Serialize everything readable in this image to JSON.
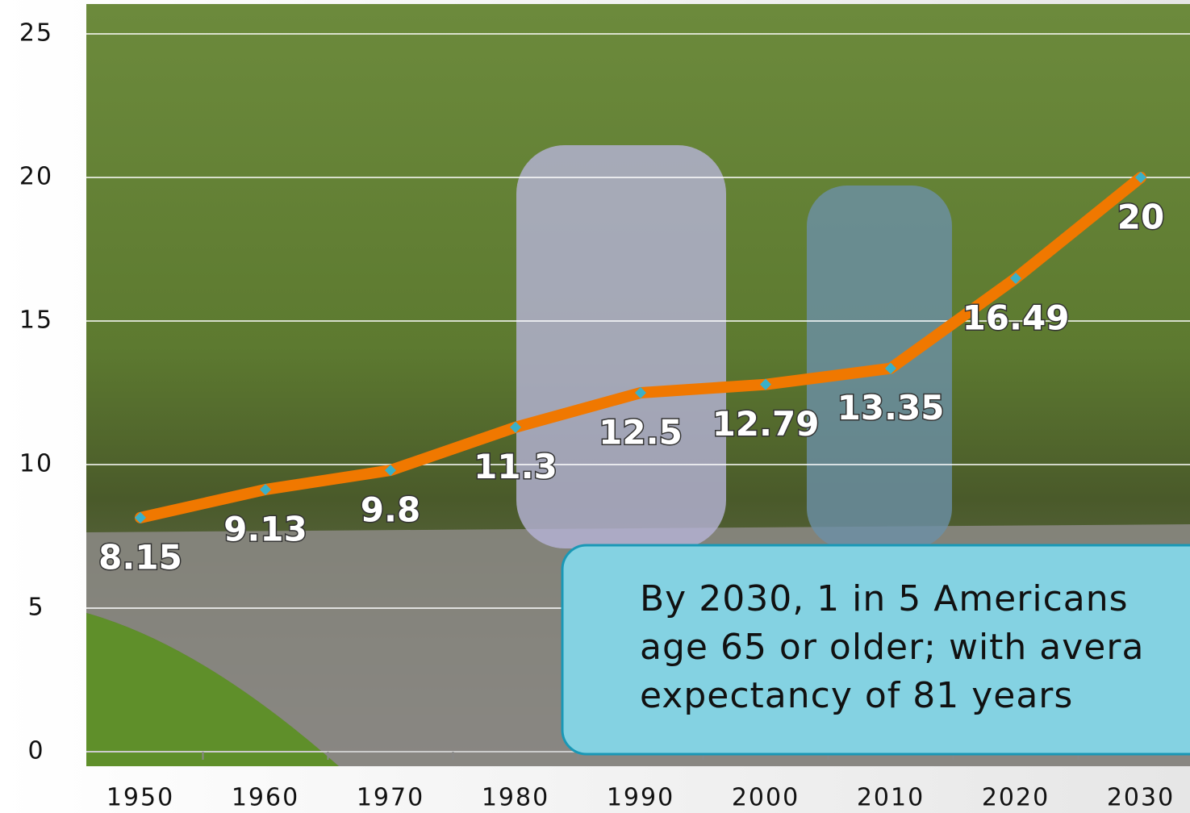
{
  "chart_data": {
    "type": "line",
    "categories": [
      "1950",
      "1960",
      "1970",
      "1980",
      "1990",
      "2000",
      "2010",
      "2020",
      "2030"
    ],
    "series": [
      {
        "name": null,
        "color": "#f07800",
        "values": [
          8.15,
          9.13,
          9.8,
          11.3,
          12.5,
          12.79,
          13.35,
          16.49,
          20
        ]
      }
    ],
    "ylim": [
      0,
      25
    ],
    "yticks": [
      0,
      5,
      10,
      15,
      20,
      25
    ],
    "grid": true,
    "marker_color": "#3ab0c8",
    "annotation": [
      "By 2030, 1 in 5 Americans",
      "age 65 or older; with avera",
      "expectancy of 81 years"
    ]
  }
}
